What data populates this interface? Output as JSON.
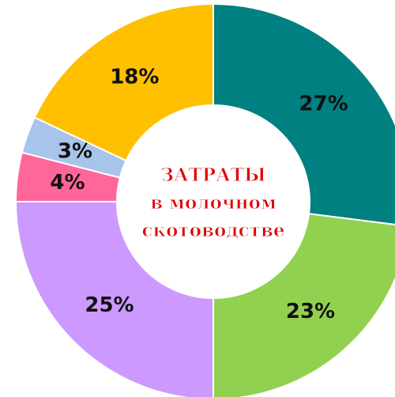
{
  "chart_data": {
    "type": "pie",
    "title": [
      "ЗАТРАТЫ",
      "в молочном",
      "скотоводстве"
    ],
    "values": [
      27,
      23,
      25,
      4,
      3,
      18
    ],
    "value_labels": [
      "27%",
      "23%",
      "25%",
      "4%",
      "3%",
      "18%"
    ],
    "colors": [
      "#008080",
      "#92d050",
      "#cc99ff",
      "#ff6699",
      "#a9c4eb",
      "#ffc000"
    ],
    "donut": true
  }
}
